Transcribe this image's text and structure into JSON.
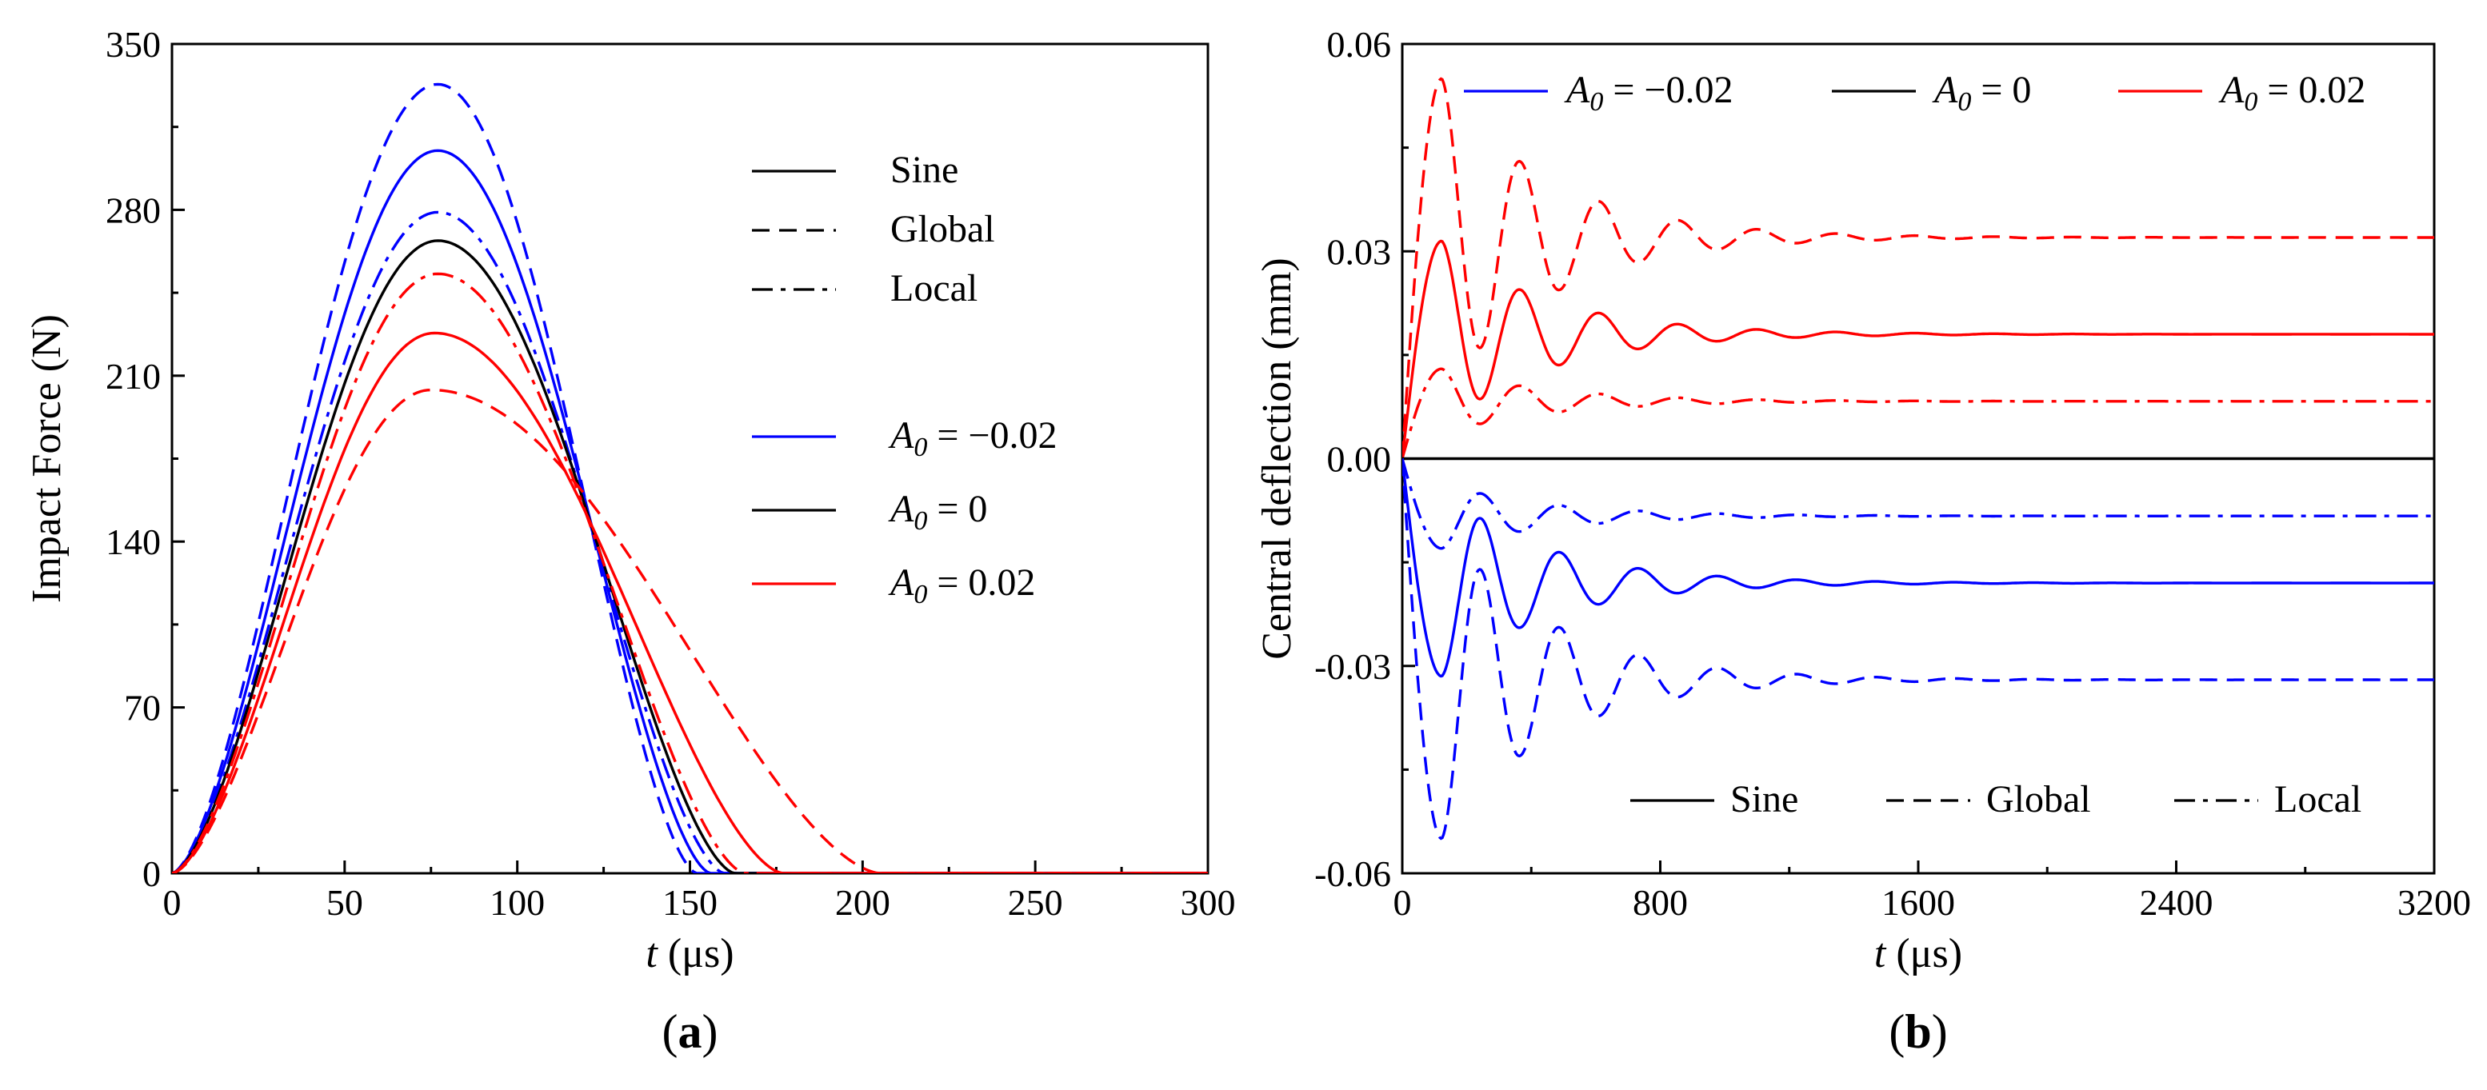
{
  "colors": {
    "neg": "#0000ff",
    "zero": "#000000",
    "pos": "#ff0000"
  },
  "chart_data": [
    {
      "type": "line",
      "panel_label": "(a)",
      "ylabel": "Impact Force (N)",
      "xlabel_italic": "t",
      "xlabel_unit": " (μs)",
      "xlim": [
        0,
        300
      ],
      "ylim": [
        0,
        350
      ],
      "xticks": [
        0,
        50,
        100,
        150,
        200,
        250,
        300
      ],
      "yticks": [
        0,
        70,
        140,
        210,
        280,
        350
      ],
      "legend_styles": [
        {
          "label": "Sine",
          "dash": "solid"
        },
        {
          "label": "Global",
          "dash": "dash"
        },
        {
          "label": "Local",
          "dash": "dashdot"
        }
      ],
      "legend_amps": [
        {
          "prefix": "A",
          "sub": "0",
          "text": " = −0.02",
          "color": "neg"
        },
        {
          "prefix": "A",
          "sub": "0",
          "text": " = 0",
          "color": "zero"
        },
        {
          "prefix": "A",
          "sub": "0",
          "text": " = 0.02",
          "color": "pos"
        }
      ],
      "series": [
        {
          "name": "A0=-0.02 Global",
          "color": "neg",
          "dash": "dash",
          "peak": 333,
          "t_peak": 77,
          "t_end": 152
        },
        {
          "name": "A0=-0.02 Sine",
          "color": "neg",
          "dash": "solid",
          "peak": 305,
          "t_peak": 77,
          "t_end": 156
        },
        {
          "name": "A0=-0.02 Local",
          "color": "neg",
          "dash": "dashdot",
          "peak": 279,
          "t_peak": 77,
          "t_end": 160
        },
        {
          "name": "A0=0 Sine",
          "color": "zero",
          "dash": "solid",
          "peak": 267,
          "t_peak": 77,
          "t_end": 163
        },
        {
          "name": "A0=0.02 Local",
          "color": "pos",
          "dash": "dashdot",
          "peak": 253,
          "t_peak": 77,
          "t_end": 166
        },
        {
          "name": "A0=0.02 Sine",
          "color": "pos",
          "dash": "solid",
          "peak": 228,
          "t_peak": 76,
          "t_end": 177
        },
        {
          "name": "A0=0.02 Global",
          "color": "pos",
          "dash": "dash",
          "peak": 204,
          "t_peak": 75,
          "t_end": 205
        }
      ]
    },
    {
      "type": "line",
      "panel_label": "(b)",
      "ylabel": "Central deflection (mm)",
      "xlabel_italic": "t",
      "xlabel_unit": " (μs)",
      "xlim": [
        0,
        3200
      ],
      "ylim": [
        -0.06,
        0.06
      ],
      "xticks": [
        0,
        800,
        1600,
        2400,
        3200
      ],
      "yticks": [
        -0.06,
        -0.03,
        0.0,
        0.03,
        0.06
      ],
      "ytick_labels": [
        "-0.06",
        "-0.03",
        "0.00",
        "0.03",
        "0.06"
      ],
      "legend_amps": [
        {
          "prefix": "A",
          "sub": "0",
          "text": " = −0.02",
          "color": "neg"
        },
        {
          "prefix": "A",
          "sub": "0",
          "text": " = 0",
          "color": "zero"
        },
        {
          "prefix": "A",
          "sub": "0",
          "text": " = 0.02",
          "color": "pos"
        }
      ],
      "legend_styles": [
        {
          "label": "Sine",
          "dash": "solid"
        },
        {
          "label": "Global",
          "dash": "dash"
        },
        {
          "label": "Local",
          "dash": "dashdot"
        }
      ],
      "series": [
        {
          "name": "A0=0.02 Global",
          "color": "pos",
          "dash": "dash",
          "steady": 0.032,
          "first_peak": 0.055
        },
        {
          "name": "A0=0.02 Sine",
          "color": "pos",
          "dash": "solid",
          "steady": 0.018,
          "first_peak": 0.0315
        },
        {
          "name": "A0=0.02 Local",
          "color": "pos",
          "dash": "dashdot",
          "steady": 0.0083,
          "first_peak": 0.013
        },
        {
          "name": "A0=0 Sine",
          "color": "zero",
          "dash": "solid",
          "steady": 0.0,
          "first_peak": 0.0
        },
        {
          "name": "A0=-0.02 Local",
          "color": "neg",
          "dash": "dashdot",
          "steady": -0.0083,
          "first_peak": -0.013
        },
        {
          "name": "A0=-0.02 Sine",
          "color": "neg",
          "dash": "solid",
          "steady": -0.018,
          "first_peak": -0.0315
        },
        {
          "name": "A0=-0.02 Global",
          "color": "neg",
          "dash": "dash",
          "steady": -0.032,
          "first_peak": -0.055
        }
      ],
      "oscillation_period_us": 245
    }
  ]
}
